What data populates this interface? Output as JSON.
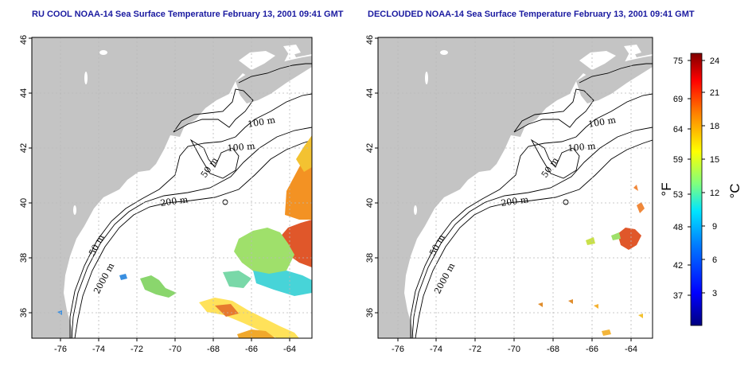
{
  "panels": [
    {
      "id": "raw",
      "title": "RU COOL NOAA-14 Sea Surface Temperature February 13, 2001 09:41 GMT",
      "x_ticks": [
        "-76",
        "-74",
        "-72",
        "-70",
        "-68",
        "-66",
        "-64"
      ],
      "y_ticks": [
        "36",
        "38",
        "40",
        "42",
        "44",
        "46"
      ],
      "contour_labels": [
        "100 m",
        "100 m",
        "50 m",
        "200 m",
        "50 m",
        "2000 m"
      ]
    },
    {
      "id": "declouded",
      "title": "DECLOUDED NOAA-14 Sea Surface Temperature February 13, 2001 09:41 GMT",
      "x_ticks": [
        "-76",
        "-74",
        "-72",
        "-70",
        "-68",
        "-66",
        "-64"
      ],
      "y_ticks": [
        "36",
        "38",
        "40",
        "42",
        "44",
        "46"
      ],
      "contour_labels": [
        "100 m",
        "100 m",
        "50 m",
        "200 m",
        "50 m",
        "2000 m"
      ]
    }
  ],
  "colorbar": {
    "fahrenheit_label": "°F",
    "celsius_label": "°C",
    "fahrenheit_ticks": [
      "75",
      "69",
      "64",
      "59",
      "53",
      "48",
      "42",
      "37"
    ],
    "celsius_ticks": [
      "24",
      "21",
      "18",
      "15",
      "12",
      "9",
      "6",
      "3"
    ],
    "colors": [
      "#00007f",
      "#0000ff",
      "#007fff",
      "#00ffff",
      "#7fff7f",
      "#ffff00",
      "#ff7f00",
      "#ff0000",
      "#7f0000"
    ]
  },
  "map_colors": {
    "land": "#c4c4c4",
    "ocean": "#ffffff",
    "title": "#1a1aa0"
  }
}
